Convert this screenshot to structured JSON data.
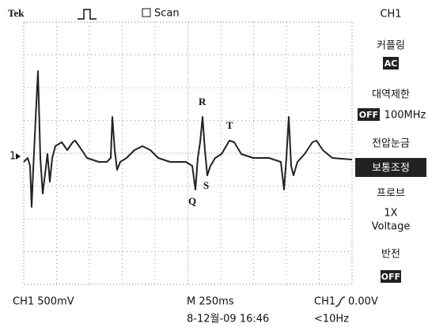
{
  "header": {
    "brand": "Tek",
    "mode": "Scan"
  },
  "menu": {
    "channel": "CH1",
    "coupling": {
      "label": "커플링",
      "value": "AC"
    },
    "bandwidth": {
      "label": "대역제한",
      "state": "OFF",
      "value": "100MHz"
    },
    "volts_div": {
      "label": "전압눈금",
      "value": "보통조정"
    },
    "probe": {
      "label": "프로브",
      "value": "1X",
      "unit": "Voltage"
    },
    "invert": {
      "label": "반전",
      "value": "OFF"
    }
  },
  "trace": {
    "marker": "1",
    "labels": {
      "r": "R",
      "t": "T",
      "s": "S",
      "q": "Q"
    }
  },
  "footer": {
    "scale": "CH1 500mV",
    "timebase": "M 250ms",
    "datetime": "8-12월-09 16:46",
    "trigger_source": "CH1",
    "trigger_level": "0.00V",
    "frequency": "<10Hz"
  }
}
